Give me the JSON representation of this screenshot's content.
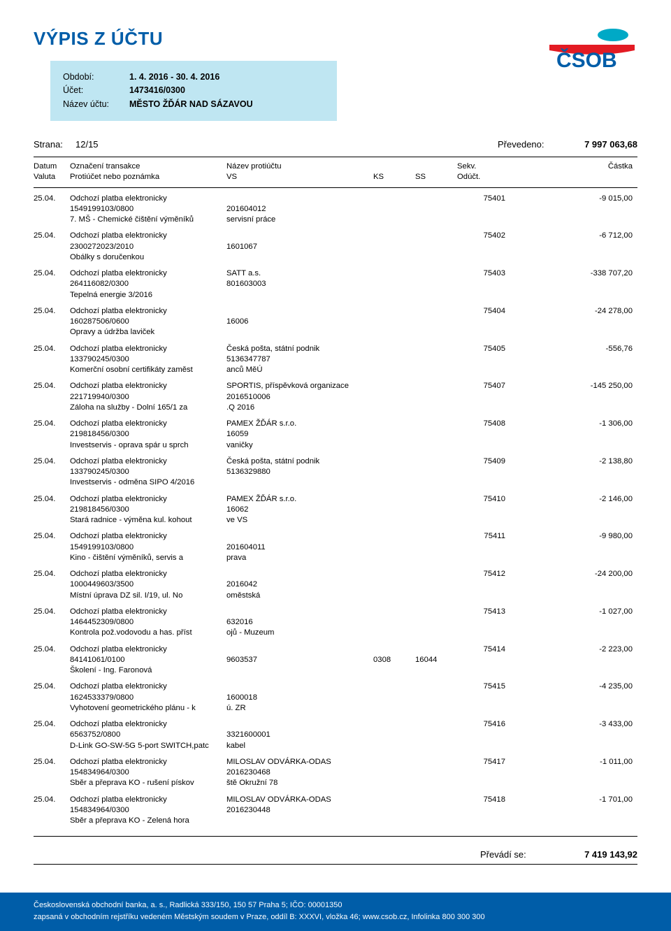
{
  "title": "VÝPIS Z ÚČTU",
  "info": {
    "period_label": "Období:",
    "period": "1. 4. 2016 - 30. 4. 2016",
    "account_label": "Účet:",
    "account": "1473416/0300",
    "name_label": "Název účtu:",
    "name": "MĚSTO ŽĎÁR NAD SÁZAVOU"
  },
  "meta": {
    "page_label": "Strana:",
    "page": "12/15",
    "carried_label": "Převedeno:",
    "carried": "7 997 063,68"
  },
  "thead": {
    "c1a": "Datum",
    "c1b": "Valuta",
    "c2a": "Označení transakce",
    "c2b": "Protiúčet nebo poznámka",
    "c3a": "Název protiúčtu",
    "c3b": "VS",
    "c4b": "KS",
    "c5b": "SS",
    "c6a": "Sekv.",
    "c6b": "Odúčt.",
    "c7a": "Částka"
  },
  "rows": [
    {
      "date": "25.04.",
      "l1": "Odchozí platba elektronicky",
      "l2": "1549199103/0800",
      "l3": "7. MŠ - Chemické čištění výměníků",
      "p1": "",
      "p2": "201604012",
      "p3": "servisní práce",
      "ks": "",
      "ss": "",
      "seq": "75401",
      "amt": "-9 015,00"
    },
    {
      "date": "25.04.",
      "l1": "Odchozí platba elektronicky",
      "l2": "2300272023/2010",
      "l3": "Obálky s doručenkou",
      "p1": "",
      "p2": "1601067",
      "p3": "",
      "ks": "",
      "ss": "",
      "seq": "75402",
      "amt": "-6 712,00"
    },
    {
      "date": "25.04.",
      "l1": "Odchozí platba elektronicky",
      "l2": "264116082/0300",
      "l3": "Tepelná energie 3/2016",
      "p1": "SATT a.s.",
      "p2": "801603003",
      "p3": "",
      "ks": "",
      "ss": "",
      "seq": "75403",
      "amt": "-338 707,20"
    },
    {
      "date": "25.04.",
      "l1": "Odchozí platba elektronicky",
      "l2": "160287506/0600",
      "l3": "Opravy a údržba laviček",
      "p1": "",
      "p2": "16006",
      "p3": "",
      "ks": "",
      "ss": "",
      "seq": "75404",
      "amt": "-24 278,00"
    },
    {
      "date": "25.04.",
      "l1": "Odchozí platba elektronicky",
      "l2": "133790245/0300",
      "l3": "Komerční osobní certifikáty zaměst",
      "p1": "Česká pošta, státní podnik",
      "p2": "5136347787",
      "p3": "anců MěÚ",
      "ks": "",
      "ss": "",
      "seq": "75405",
      "amt": "-556,76"
    },
    {
      "date": "25.04.",
      "l1": "Odchozí platba elektronicky",
      "l2": "221719940/0300",
      "l3": "Záloha na služby - Dolní 165/1 za",
      "p1": "SPORTIS, příspěvková organizace",
      "p2": "2016510006",
      "p3": ".Q 2016",
      "ks": "",
      "ss": "",
      "seq": "75407",
      "amt": "-145 250,00"
    },
    {
      "date": "25.04.",
      "l1": "Odchozí platba elektronicky",
      "l2": "219818456/0300",
      "l3": "Investservis - oprava spár u sprch",
      "p1": "PAMEX ŽĎÁR s.r.o.",
      "p2": "16059",
      "p3": "vaničky",
      "ks": "",
      "ss": "",
      "seq": "75408",
      "amt": "-1 306,00"
    },
    {
      "date": "25.04.",
      "l1": "Odchozí platba elektronicky",
      "l2": "133790245/0300",
      "l3": "Investservis - odměna SIPO 4/2016",
      "p1": "Česká pošta, státní podnik",
      "p2": "5136329880",
      "p3": "",
      "ks": "",
      "ss": "",
      "seq": "75409",
      "amt": "-2 138,80"
    },
    {
      "date": "25.04.",
      "l1": "Odchozí platba elektronicky",
      "l2": "219818456/0300",
      "l3": "Stará radnice - výměna kul. kohout",
      "p1": "PAMEX ŽĎÁR s.r.o.",
      "p2": "16062",
      "p3": "ve VS",
      "ks": "",
      "ss": "",
      "seq": "75410",
      "amt": "-2 146,00"
    },
    {
      "date": "25.04.",
      "l1": "Odchozí platba elektronicky",
      "l2": "1549199103/0800",
      "l3": "Kino - čištění výměníků, servis a",
      "p1": "",
      "p2": "201604011",
      "p3": "prava",
      "ks": "",
      "ss": "",
      "seq": "75411",
      "amt": "-9 980,00"
    },
    {
      "date": "25.04.",
      "l1": "Odchozí platba elektronicky",
      "l2": "1000449603/3500",
      "l3": "Místní úprava DZ sil. I/19, ul. No",
      "p1": "",
      "p2": "2016042",
      "p3": "oměstská",
      "ks": "",
      "ss": "",
      "seq": "75412",
      "amt": "-24 200,00"
    },
    {
      "date": "25.04.",
      "l1": "Odchozí platba elektronicky",
      "l2": "1464452309/0800",
      "l3": "Kontrola pož.vodovodu a has. příst",
      "p1": "",
      "p2": "632016",
      "p3": "ojů - Muzeum",
      "ks": "",
      "ss": "",
      "seq": "75413",
      "amt": "-1 027,00"
    },
    {
      "date": "25.04.",
      "l1": "Odchozí platba elektronicky",
      "l2": "84141061/0100",
      "l3": "Školení - Ing. Faronová",
      "p1": "",
      "p2": "9603537",
      "p3": "",
      "ks": "0308",
      "ss": "16044",
      "seq": "75414",
      "amt": "-2 223,00"
    },
    {
      "date": "25.04.",
      "l1": "Odchozí platba elektronicky",
      "l2": "1624533379/0800",
      "l3": "Vyhotovení geometrického plánu - k",
      "p1": "",
      "p2": "1600018",
      "p3": "ú. ZR",
      "ks": "",
      "ss": "",
      "seq": "75415",
      "amt": "-4 235,00"
    },
    {
      "date": "25.04.",
      "l1": "Odchozí platba elektronicky",
      "l2": "6563752/0800",
      "l3": "D-Link GO-SW-5G 5-port SWITCH,patc",
      "p1": "",
      "p2": "3321600001",
      "p3": "kabel",
      "ks": "",
      "ss": "",
      "seq": "75416",
      "amt": "-3 433,00"
    },
    {
      "date": "25.04.",
      "l1": "Odchozí platba elektronicky",
      "l2": "154834964/0300",
      "l3": "Sběr a přeprava KO - rušení pískov",
      "p1": "MILOSLAV ODVÁRKA-ODAS",
      "p2": "2016230468",
      "p3": "ště Okružní 78",
      "ks": "",
      "ss": "",
      "seq": "75417",
      "amt": "-1 011,00"
    },
    {
      "date": "25.04.",
      "l1": "Odchozí platba elektronicky",
      "l2": "154834964/0300",
      "l3": "Sběr a přeprava KO - Zelená hora",
      "p1": "MILOSLAV ODVÁRKA-ODAS",
      "p2": "2016230448",
      "p3": "",
      "ks": "",
      "ss": "",
      "seq": "75418",
      "amt": "-1 701,00"
    }
  ],
  "footer": {
    "label": "Převádí se:",
    "value": "7 419 143,92"
  },
  "bottom": {
    "line1": "Československá obchodní banka, a. s., Radlická 333/150, 150 57 Praha 5; IČO: 00001350",
    "line2": "zapsaná v obchodním rejstříku vedeném Městským soudem v Praze, oddíl B: XXXVI, vložka 46; www.csob.cz, Infolinka 800 300 300"
  },
  "colors": {
    "brand_blue": "#005da8",
    "header_bg": "#bfe6f2"
  }
}
